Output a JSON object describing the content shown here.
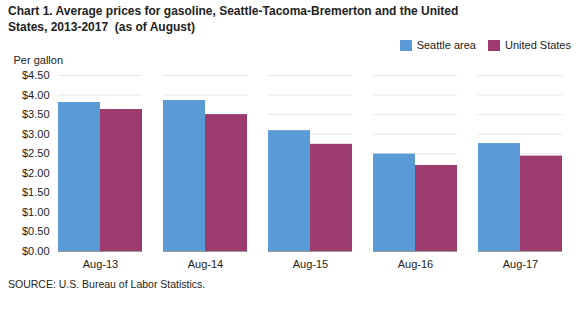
{
  "chart_data": {
    "type": "bar",
    "title": "Chart 1. Average prices for gasoline, Seattle-Tacoma-Bremerton and the United\nStates, 2013-2017  (as of August)",
    "ylabel": "Per gallon",
    "source": "SOURCE: U.S. Bureau of Labor Statistics.",
    "categories": [
      "Aug-13",
      "Aug-14",
      "Aug-15",
      "Aug-16",
      "Aug-17"
    ],
    "series": [
      {
        "name": "Seattle area",
        "color": "#5B9BD5",
        "values": [
          3.81,
          3.86,
          3.09,
          2.49,
          2.76
        ]
      },
      {
        "name": "United States",
        "color": "#9E3B6E",
        "values": [
          3.63,
          3.5,
          2.74,
          2.2,
          2.44
        ]
      }
    ],
    "ylim": [
      0,
      4.5
    ],
    "yticks": [
      {
        "value": 0.0,
        "label": "$0.00"
      },
      {
        "value": 0.5,
        "label": "$0.50"
      },
      {
        "value": 1.0,
        "label": "$1.00"
      },
      {
        "value": 1.5,
        "label": "$1.50"
      },
      {
        "value": 2.0,
        "label": "$2.00"
      },
      {
        "value": 2.5,
        "label": "$2.50"
      },
      {
        "value": 3.0,
        "label": "$3.00"
      },
      {
        "value": 3.5,
        "label": "$3.50"
      },
      {
        "value": 4.0,
        "label": "$4.00"
      },
      {
        "value": 4.5,
        "label": "$4.50"
      }
    ],
    "grid": true,
    "legend": "upper right"
  }
}
